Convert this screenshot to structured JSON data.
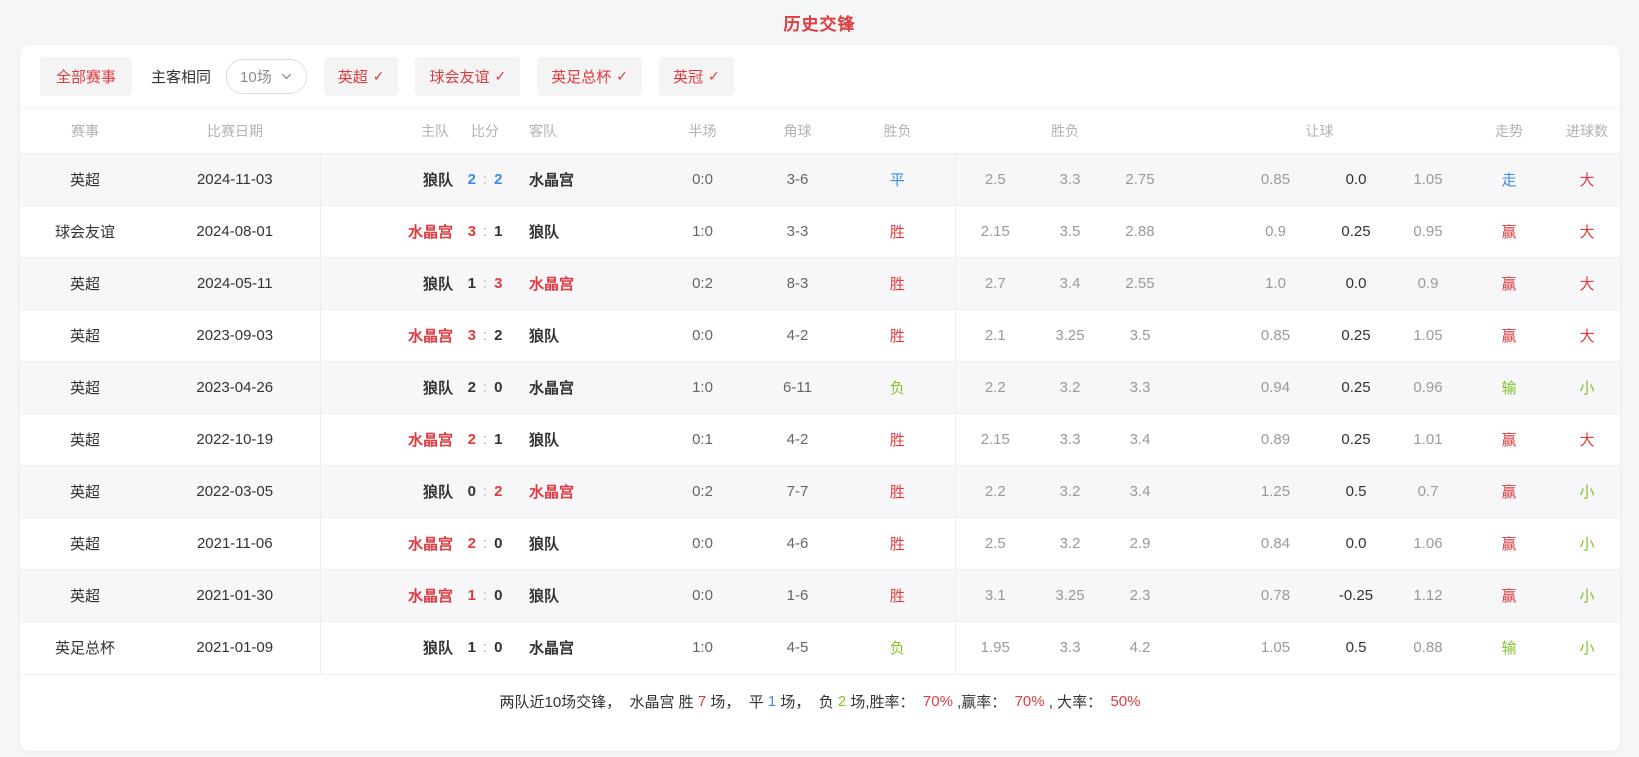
{
  "page": {
    "title": "历史交锋"
  },
  "filters": {
    "all_events_label": "全部赛事",
    "home_away_label": "主客相同",
    "count_label": "10场",
    "check_glyph": "✓",
    "leagues": [
      {
        "label": "英超"
      },
      {
        "label": "球会友谊"
      },
      {
        "label": "英足总杯"
      },
      {
        "label": "英冠"
      }
    ]
  },
  "table": {
    "headers": [
      "赛事",
      "比赛日期",
      "主队",
      "比分",
      "客队",
      "半场",
      "角球",
      "胜负",
      "胜负",
      "让球",
      "走势",
      "进球数"
    ],
    "rows": [
      {
        "league": "英超",
        "date": "2024-11-03",
        "home": "狼队",
        "home_c": "",
        "sh": "2",
        "sh_c": "blue",
        "sa": "2",
        "sa_c": "blue",
        "away": "水晶宫",
        "away_c": "",
        "half": "0:0",
        "corner": "3-6",
        "result": "平",
        "result_c": "blue",
        "odds": [
          "2.5",
          "3.3",
          "2.75"
        ],
        "handicap": [
          "0.85",
          "0.0",
          "1.05"
        ],
        "trend": "走",
        "trend_c": "blue",
        "goals": "大",
        "goals_c": "red"
      },
      {
        "league": "球会友谊",
        "date": "2024-08-01",
        "home": "水晶宫",
        "home_c": "red",
        "sh": "3",
        "sh_c": "red",
        "sa": "1",
        "sa_c": "",
        "away": "狼队",
        "away_c": "",
        "half": "1:0",
        "corner": "3-3",
        "result": "胜",
        "result_c": "red",
        "odds": [
          "2.15",
          "3.5",
          "2.88"
        ],
        "handicap": [
          "0.9",
          "0.25",
          "0.95"
        ],
        "trend": "赢",
        "trend_c": "red",
        "goals": "大",
        "goals_c": "red"
      },
      {
        "league": "英超",
        "date": "2024-05-11",
        "home": "狼队",
        "home_c": "",
        "sh": "1",
        "sh_c": "",
        "sa": "3",
        "sa_c": "red",
        "away": "水晶宫",
        "away_c": "red",
        "half": "0:2",
        "corner": "8-3",
        "result": "胜",
        "result_c": "red",
        "odds": [
          "2.7",
          "3.4",
          "2.55"
        ],
        "handicap": [
          "1.0",
          "0.0",
          "0.9"
        ],
        "trend": "赢",
        "trend_c": "red",
        "goals": "大",
        "goals_c": "red"
      },
      {
        "league": "英超",
        "date": "2023-09-03",
        "home": "水晶宫",
        "home_c": "red",
        "sh": "3",
        "sh_c": "red",
        "sa": "2",
        "sa_c": "",
        "away": "狼队",
        "away_c": "",
        "half": "0:0",
        "corner": "4-2",
        "result": "胜",
        "result_c": "red",
        "odds": [
          "2.1",
          "3.25",
          "3.5"
        ],
        "handicap": [
          "0.85",
          "0.25",
          "1.05"
        ],
        "trend": "赢",
        "trend_c": "red",
        "goals": "大",
        "goals_c": "red"
      },
      {
        "league": "英超",
        "date": "2023-04-26",
        "home": "狼队",
        "home_c": "",
        "sh": "2",
        "sh_c": "",
        "sa": "0",
        "sa_c": "",
        "away": "水晶宫",
        "away_c": "",
        "half": "1:0",
        "corner": "6-11",
        "result": "负",
        "result_c": "green",
        "odds": [
          "2.2",
          "3.2",
          "3.3"
        ],
        "handicap": [
          "0.94",
          "0.25",
          "0.96"
        ],
        "trend": "输",
        "trend_c": "green",
        "goals": "小",
        "goals_c": "green"
      },
      {
        "league": "英超",
        "date": "2022-10-19",
        "home": "水晶宫",
        "home_c": "red",
        "sh": "2",
        "sh_c": "red",
        "sa": "1",
        "sa_c": "",
        "away": "狼队",
        "away_c": "",
        "half": "0:1",
        "corner": "4-2",
        "result": "胜",
        "result_c": "red",
        "odds": [
          "2.15",
          "3.3",
          "3.4"
        ],
        "handicap": [
          "0.89",
          "0.25",
          "1.01"
        ],
        "trend": "赢",
        "trend_c": "red",
        "goals": "大",
        "goals_c": "red"
      },
      {
        "league": "英超",
        "date": "2022-03-05",
        "home": "狼队",
        "home_c": "",
        "sh": "0",
        "sh_c": "",
        "sa": "2",
        "sa_c": "red",
        "away": "水晶宫",
        "away_c": "red",
        "half": "0:2",
        "corner": "7-7",
        "result": "胜",
        "result_c": "red",
        "odds": [
          "2.2",
          "3.2",
          "3.4"
        ],
        "handicap": [
          "1.25",
          "0.5",
          "0.7"
        ],
        "trend": "赢",
        "trend_c": "red",
        "goals": "小",
        "goals_c": "green"
      },
      {
        "league": "英超",
        "date": "2021-11-06",
        "home": "水晶宫",
        "home_c": "red",
        "sh": "2",
        "sh_c": "red",
        "sa": "0",
        "sa_c": "",
        "away": "狼队",
        "away_c": "",
        "half": "0:0",
        "corner": "4-6",
        "result": "胜",
        "result_c": "red",
        "odds": [
          "2.5",
          "3.2",
          "2.9"
        ],
        "handicap": [
          "0.84",
          "0.0",
          "1.06"
        ],
        "trend": "赢",
        "trend_c": "red",
        "goals": "小",
        "goals_c": "green"
      },
      {
        "league": "英超",
        "date": "2021-01-30",
        "home": "水晶宫",
        "home_c": "red",
        "sh": "1",
        "sh_c": "red",
        "sa": "0",
        "sa_c": "",
        "away": "狼队",
        "away_c": "",
        "half": "0:0",
        "corner": "1-6",
        "result": "胜",
        "result_c": "red",
        "odds": [
          "3.1",
          "3.25",
          "2.3"
        ],
        "handicap": [
          "0.78",
          "-0.25",
          "1.12"
        ],
        "trend": "赢",
        "trend_c": "red",
        "goals": "小",
        "goals_c": "green"
      },
      {
        "league": "英足总杯",
        "date": "2021-01-09",
        "home": "狼队",
        "home_c": "",
        "sh": "1",
        "sh_c": "",
        "sa": "0",
        "sa_c": "",
        "away": "水晶宫",
        "away_c": "",
        "half": "1:0",
        "corner": "4-5",
        "result": "负",
        "result_c": "green",
        "odds": [
          "1.95",
          "3.3",
          "4.2"
        ],
        "handicap": [
          "1.05",
          "0.5",
          "0.88"
        ],
        "trend": "输",
        "trend_c": "green",
        "goals": "小",
        "goals_c": "green"
      }
    ]
  },
  "summary": {
    "segments": [
      {
        "t": "两队近10场交锋，  水晶宫 胜 ",
        "c": ""
      },
      {
        "t": "7",
        "c": "red"
      },
      {
        "t": " 场，  平 ",
        "c": ""
      },
      {
        "t": "1",
        "c": "blue"
      },
      {
        "t": " 场，  负 ",
        "c": ""
      },
      {
        "t": "2",
        "c": "green"
      },
      {
        "t": " 场,胜率：  ",
        "c": ""
      },
      {
        "t": "70%",
        "c": "red"
      },
      {
        "t": " ,赢率：  ",
        "c": ""
      },
      {
        "t": "70%",
        "c": "red"
      },
      {
        "t": " , 大率：  ",
        "c": ""
      },
      {
        "t": "50%",
        "c": "red"
      }
    ]
  },
  "colors": {
    "red": "#e03a3f",
    "blue": "#3a8de8",
    "green": "#84c32c"
  }
}
